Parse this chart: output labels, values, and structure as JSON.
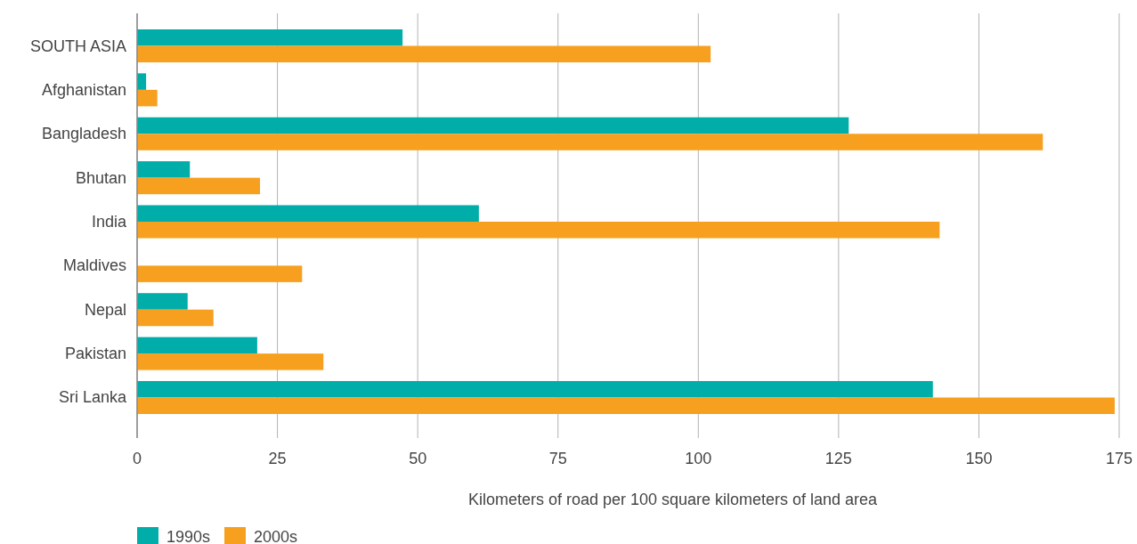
{
  "chart_data": {
    "type": "bar",
    "orientation": "horizontal",
    "categories": [
      "SOUTH ASIA",
      "Afghanistan",
      "Bangladesh",
      "Bhutan",
      "India",
      "Maldives",
      "Nepal",
      "Pakistan",
      "Sri Lanka"
    ],
    "series": [
      {
        "name": "1990s",
        "color": "#00ada8",
        "values": [
          47.3,
          1.6,
          126.8,
          9.4,
          60.9,
          null,
          9.0,
          21.4,
          141.8
        ]
      },
      {
        "name": "2000s",
        "color": "#f7a01f",
        "values": [
          102.2,
          3.6,
          161.4,
          21.9,
          143.0,
          29.4,
          13.6,
          33.2,
          174.2
        ]
      }
    ],
    "xlim": [
      0,
      175
    ],
    "xticks": [
      0,
      25,
      50,
      75,
      100,
      125,
      150,
      175
    ],
    "grid": "x",
    "legend": "bottom left",
    "xlabel": "Kilometers of road per 100 square kilometers of land area"
  }
}
